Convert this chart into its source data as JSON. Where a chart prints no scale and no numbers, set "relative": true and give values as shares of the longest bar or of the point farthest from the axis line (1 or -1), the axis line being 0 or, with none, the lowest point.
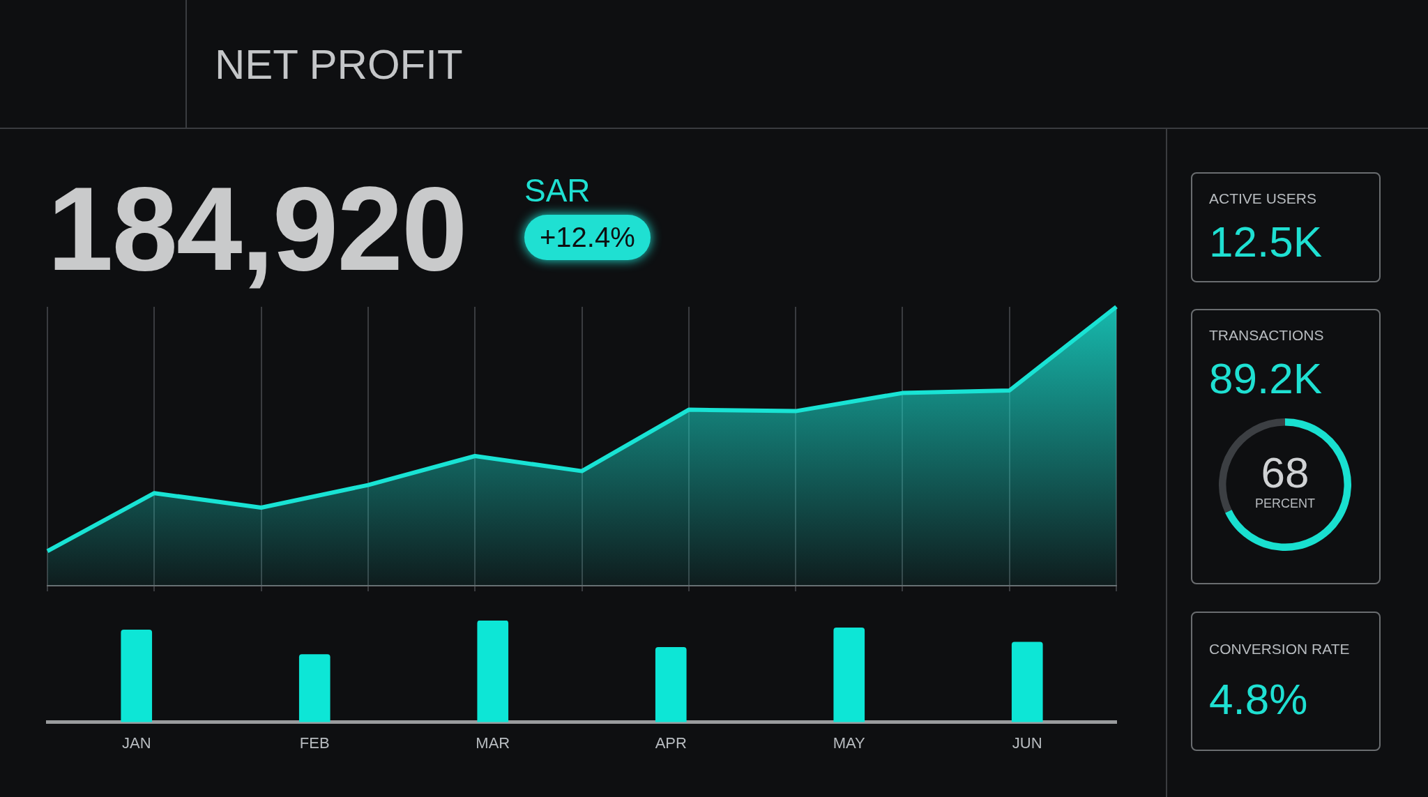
{
  "chart_data": [
    {
      "type": "area",
      "title": "NET PROFIT",
      "annotations": [
        "184,920",
        "SAR",
        "+12.4%"
      ],
      "categories": [
        null,
        null,
        null,
        null,
        null,
        null,
        null,
        null,
        null,
        null,
        null
      ],
      "relative": true,
      "tick_labels": false,
      "grid": "x",
      "series": [
        {
          "color": "#19e3d4",
          "values": [
            0.124,
            0.332,
            0.28,
            0.361,
            0.465,
            0.411,
            0.631,
            0.626,
            0.691,
            0.7,
            1
          ]
        }
      ]
    },
    {
      "type": "bar",
      "categories": [
        "JAN",
        "FEB",
        "MAR",
        "APR",
        "MAY",
        "JUN"
      ],
      "relative": true,
      "tick_labels": "x",
      "values": [
        0.909,
        0.667,
        1,
        0.737,
        0.929,
        0.788
      ],
      "color": "#0de6d6"
    },
    {
      "type": "other",
      "title": "ACTIVE USERS",
      "annotations": [
        "12.5K"
      ]
    },
    {
      "type": "other",
      "title": "TRANSACTIONS",
      "annotations": [
        "89.2K"
      ]
    },
    {
      "type": "donut",
      "categories": [
        null,
        null
      ],
      "values": [
        68,
        32
      ],
      "colors": [
        "#19e0d0",
        "#3c3f43"
      ],
      "annotations": [
        "68",
        "PERCENT"
      ]
    },
    {
      "type": "other",
      "title": "CONVERSION RATE",
      "annotations": [
        "4.8%"
      ]
    }
  ]
}
